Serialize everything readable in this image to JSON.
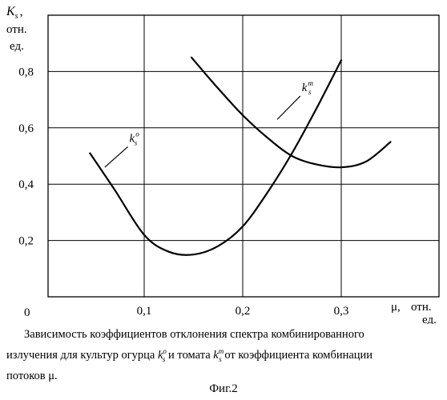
{
  "chart_data": {
    "type": "line",
    "y_axis": {
      "symbol": "K",
      "subscript": "s",
      "suffix": ",",
      "unit_lines": [
        "отн.",
        "ед."
      ],
      "ylim": [
        0,
        1.0
      ]
    },
    "x_axis": {
      "symbol": "μ,",
      "unit_lines": [
        "отн.",
        "ед."
      ],
      "xlim": [
        0,
        0.35
      ]
    },
    "origin_label": "0",
    "x_ticks": [
      {
        "value": 0.1,
        "label": "0,1"
      },
      {
        "value": 0.2,
        "label": "0,2"
      },
      {
        "value": 0.3,
        "label": "0,3"
      }
    ],
    "y_ticks": [
      {
        "value": 0.2,
        "label": "0,2"
      },
      {
        "value": 0.4,
        "label": "0,4"
      },
      {
        "value": 0.6,
        "label": "0,6"
      },
      {
        "value": 0.8,
        "label": "0,8"
      }
    ],
    "grid": true,
    "series": [
      {
        "name": "k_s^o",
        "label_main": "k",
        "label_sub": "s",
        "label_sup": "o",
        "label_at": {
          "x": 0.085,
          "y": 0.55
        },
        "leader_to": {
          "x": 0.06,
          "y": 0.46
        },
        "x": [
          0.045,
          0.07,
          0.1,
          0.125,
          0.15,
          0.175,
          0.2,
          0.225,
          0.25,
          0.275,
          0.3
        ],
        "y": [
          0.51,
          0.38,
          0.22,
          0.16,
          0.15,
          0.18,
          0.25,
          0.37,
          0.51,
          0.67,
          0.84
        ]
      },
      {
        "name": "k_s^m",
        "label_main": "k",
        "label_sub": "s",
        "label_sup": "m",
        "label_at": {
          "x": 0.26,
          "y": 0.73
        },
        "leader_to": {
          "x": 0.235,
          "y": 0.63
        },
        "x": [
          0.148,
          0.175,
          0.2,
          0.225,
          0.25,
          0.275,
          0.3,
          0.325,
          0.35
        ],
        "y": [
          0.85,
          0.74,
          0.645,
          0.565,
          0.5,
          0.47,
          0.46,
          0.48,
          0.55
        ]
      }
    ]
  },
  "caption": {
    "line1": "Зависимость коэффициентов отклонения спектра комбинированного",
    "line2a": "излучения для культур огурца",
    "line2b": "и томата",
    "line2c": "от коэффициента комбинации",
    "line3": "потоков μ.",
    "k": "k",
    "sub": "s",
    "sup_o": "o",
    "sup_m": "m"
  },
  "figure_label": "Фиг.2"
}
